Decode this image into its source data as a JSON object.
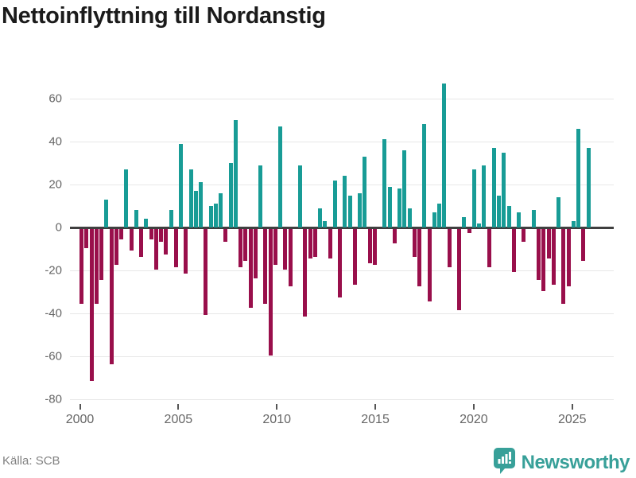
{
  "header": {
    "title": "Nettoinflyttning till Nordanstig"
  },
  "footer": {
    "source": "Källa: SCB",
    "brand_name": "Newsworthy"
  },
  "colors": {
    "positive": "#189c96",
    "negative": "#990f4b",
    "grid": "#e7e7e7",
    "zero_line": "#3f3f3f",
    "axis_text": "#666666",
    "title_text": "#1b1b1b",
    "source_text": "#828282",
    "brand_teal": "#38a099",
    "background": "#ffffff"
  },
  "chart_data": {
    "type": "bar",
    "title": "Nettoinflyttning till Nordanstig",
    "frequency": "quarterly",
    "x_start_year": 2000,
    "values": [
      -35,
      -9,
      -71,
      -35,
      -24,
      13,
      -63,
      -17,
      -5,
      27,
      -10,
      8,
      -13,
      4,
      -5,
      -19,
      -6,
      -12,
      8,
      -18,
      39,
      -21,
      27,
      17,
      21,
      -40,
      10,
      11,
      16,
      -6,
      30,
      50,
      -18,
      -15,
      -37,
      -23,
      29,
      -35,
      -59,
      -17,
      47,
      -19,
      -27,
      0,
      29,
      -41,
      -14,
      -13,
      9,
      3,
      -14,
      22,
      -32,
      24,
      15,
      -26,
      16,
      33,
      -16,
      -17,
      0,
      41,
      19,
      -7,
      18,
      36,
      9,
      -13,
      -27,
      48,
      -34,
      7,
      11,
      67,
      -18,
      0,
      -38,
      5,
      -2,
      27,
      2,
      29,
      -18,
      37,
      15,
      35,
      10,
      -20,
      7,
      -6,
      0,
      8,
      -24,
      -29,
      -14,
      -26,
      14,
      -35,
      -27,
      3,
      46,
      -15,
      37
    ],
    "y_ticks": [
      60,
      40,
      20,
      0,
      -20,
      -40,
      -60,
      -80
    ],
    "y_tick_labels": [
      "60",
      "40",
      "20",
      "0",
      "-20",
      "-40",
      "-60",
      "-80"
    ],
    "x_tick_years": [
      2000,
      2005,
      2010,
      2015,
      2020,
      2025
    ],
    "x_tick_labels": [
      "2000",
      "2005",
      "2010",
      "2015",
      "2020",
      "2025"
    ],
    "ylim": [
      -80,
      70
    ],
    "grid": "horizontal",
    "legend": "none",
    "bar_color_positive": "#189c96",
    "bar_color_negative": "#990f4b",
    "source": "Källa: SCB"
  }
}
